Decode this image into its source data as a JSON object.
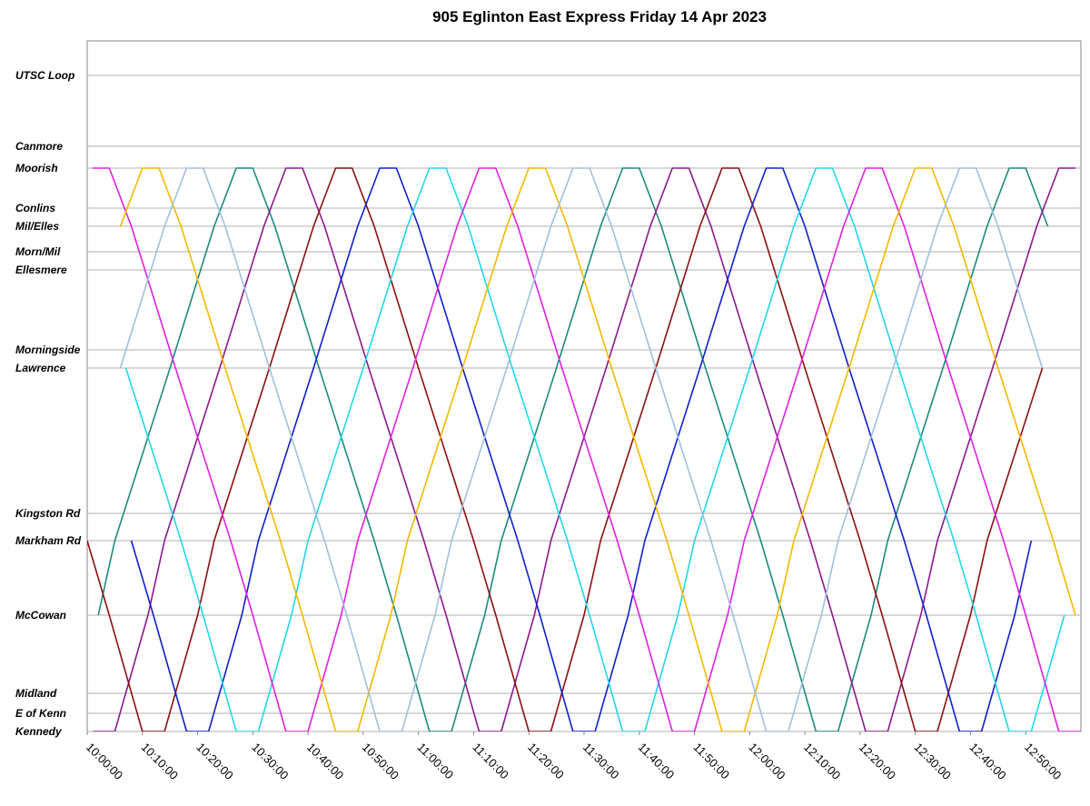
{
  "chart_data": {
    "type": "line",
    "title": "905 Eglinton East Express Friday 14 Apr 2023",
    "xlim": [
      "10:00:00",
      "13:00:00"
    ],
    "xticks": [
      "10:00:00",
      "10:10:00",
      "10:20:00",
      "10:30:00",
      "10:40:00",
      "10:50:00",
      "11:00:00",
      "11:10:00",
      "11:20:00",
      "11:30:00",
      "11:40:00",
      "11:50:00",
      "12:00:00",
      "12:10:00",
      "12:20:00",
      "12:30:00",
      "12:40:00",
      "12:50:00"
    ],
    "ylim": [
      0,
      19
    ],
    "yticks": [
      {
        "value": 18.05,
        "label": "UTSC Loop"
      },
      {
        "value": 16.1,
        "label": "Canmore"
      },
      {
        "value": 15.5,
        "label": "Moorish"
      },
      {
        "value": 14.4,
        "label": "Conlins"
      },
      {
        "value": 13.9,
        "label": "Mil/Elles"
      },
      {
        "value": 13.2,
        "label": "Morn/Mil"
      },
      {
        "value": 12.7,
        "label": "Ellesmere"
      },
      {
        "value": 10.5,
        "label": "Morningside"
      },
      {
        "value": 10,
        "label": "Lawrence"
      },
      {
        "value": 6,
        "label": "Kingston Rd"
      },
      {
        "value": 5.25,
        "label": "Markham Rd"
      },
      {
        "value": 3.2,
        "label": "McCowan"
      },
      {
        "value": 1.05,
        "label": "Midland"
      },
      {
        "value": 0.5,
        "label": "E of Kenn"
      },
      {
        "value": 0,
        "label": "Kennedy"
      }
    ],
    "grid": true,
    "series": [
      {
        "color": "#1a8a80",
        "x": [
          "10:02:00",
          "10:05:00",
          "10:15:00",
          "10:23:00",
          "10:27:00",
          "10:30:00",
          "10:34:00",
          "10:42:00",
          "10:52:00",
          "10:56:00",
          "11:02:00",
          "11:06:00",
          "11:12:00",
          "11:15:00",
          "11:25:00",
          "11:33:00",
          "11:37:00",
          "11:40:00",
          "11:44:00",
          "11:52:00",
          "12:02:00",
          "12:06:00",
          "12:12:00",
          "12:16:00",
          "12:22:00",
          "12:25:00",
          "12:35:00",
          "12:43:00",
          "12:47:00",
          "12:50:00",
          "12:54:00"
        ],
        "values": [
          3.2,
          5.25,
          10,
          13.9,
          15.5,
          15.5,
          13.9,
          10,
          5.25,
          3.2,
          0,
          0,
          3.2,
          5.25,
          10,
          13.9,
          15.5,
          15.5,
          13.9,
          10,
          5.25,
          3.2,
          0,
          0,
          3.2,
          5.25,
          10,
          13.9,
          15.5,
          15.5,
          13.9
        ]
      },
      {
        "color": "#8b1a8b",
        "x": [
          "10:01:00",
          "10:05:00",
          "10:11:00",
          "10:14:00",
          "10:24:00",
          "10:32:00",
          "10:36:00",
          "10:39:00",
          "10:43:00",
          "10:51:00",
          "11:01:00",
          "11:05:00",
          "11:11:00",
          "11:15:00",
          "11:21:00",
          "11:24:00",
          "11:34:00",
          "11:42:00",
          "11:46:00",
          "11:49:00",
          "11:53:00",
          "12:01:00",
          "12:11:00",
          "12:15:00",
          "12:21:00",
          "12:25:00",
          "12:31:00",
          "12:34:00",
          "12:44:00",
          "12:52:00",
          "12:56:00",
          "12:59:00"
        ],
        "values": [
          0,
          0,
          3.2,
          5.25,
          10,
          13.9,
          15.5,
          15.5,
          13.9,
          10,
          5.25,
          3.2,
          0,
          0,
          3.2,
          5.25,
          10,
          13.9,
          15.5,
          15.5,
          13.9,
          10,
          5.25,
          3.2,
          0,
          0,
          3.2,
          5.25,
          10,
          13.9,
          15.5,
          15.5
        ]
      },
      {
        "color": "#8b1010",
        "x": [
          "10:00:00",
          "10:04:00",
          "10:10:00",
          "10:14:00",
          "10:20:00",
          "10:23:00",
          "10:33:00",
          "10:41:00",
          "10:45:00",
          "10:48:00",
          "10:52:00",
          "11:00:00",
          "11:10:00",
          "11:14:00",
          "11:20:00",
          "11:24:00",
          "11:30:00",
          "11:33:00",
          "11:43:00",
          "11:51:00",
          "11:55:00",
          "11:58:00",
          "12:02:00",
          "12:10:00",
          "12:20:00",
          "12:24:00",
          "12:30:00",
          "12:34:00",
          "12:40:00",
          "12:43:00",
          "12:53:00"
        ],
        "values": [
          5.25,
          3.2,
          0,
          0,
          3.2,
          5.25,
          10,
          13.9,
          15.5,
          15.5,
          13.9,
          10,
          5.25,
          3.2,
          0,
          0,
          3.2,
          5.25,
          10,
          13.9,
          15.5,
          15.5,
          13.9,
          10,
          5.25,
          3.2,
          0,
          0,
          3.2,
          5.25,
          10
        ]
      },
      {
        "color": "#1020cc",
        "x": [
          "10:08:00",
          "10:12:00",
          "10:18:00",
          "10:22:00",
          "10:28:00",
          "10:31:00",
          "10:41:00",
          "10:49:00",
          "10:53:00",
          "10:56:00",
          "11:00:00",
          "11:08:00",
          "11:18:00",
          "11:22:00",
          "11:28:00",
          "11:32:00",
          "11:38:00",
          "11:41:00",
          "11:51:00",
          "11:59:00",
          "12:03:00",
          "12:06:00",
          "12:10:00",
          "12:18:00",
          "12:28:00",
          "12:32:00",
          "12:38:00",
          "12:42:00",
          "12:48:00",
          "12:51:00"
        ],
        "values": [
          5.25,
          3.2,
          0,
          0,
          3.2,
          5.25,
          10,
          13.9,
          15.5,
          15.5,
          13.9,
          10,
          5.25,
          3.2,
          0,
          0,
          3.2,
          5.25,
          10,
          13.9,
          15.5,
          15.5,
          13.9,
          10,
          5.25,
          3.2,
          0,
          0,
          3.2,
          5.25
        ]
      },
      {
        "color": "#20d8e8",
        "x": [
          "10:07:00",
          "10:17:00",
          "10:21:00",
          "10:27:00",
          "10:31:00",
          "10:37:00",
          "10:40:00",
          "10:50:00",
          "10:58:00",
          "11:02:00",
          "11:05:00",
          "11:09:00",
          "11:17:00",
          "11:27:00",
          "11:31:00",
          "11:37:00",
          "11:41:00",
          "11:47:00",
          "11:50:00",
          "12:00:00",
          "12:08:00",
          "12:12:00",
          "12:15:00",
          "12:19:00",
          "12:27:00",
          "12:37:00",
          "12:41:00",
          "12:47:00",
          "12:51:00",
          "12:57:00"
        ],
        "values": [
          10,
          5.25,
          3.2,
          0,
          0,
          3.2,
          5.25,
          10,
          13.9,
          15.5,
          15.5,
          13.9,
          10,
          5.25,
          3.2,
          0,
          0,
          3.2,
          5.25,
          10,
          13.9,
          15.5,
          15.5,
          13.9,
          10,
          5.25,
          3.2,
          0,
          0,
          3.2
        ]
      },
      {
        "color": "#e020e0",
        "x": [
          "10:01:00",
          "10:04:00",
          "10:08:00",
          "10:16:00",
          "10:26:00",
          "10:30:00",
          "10:36:00",
          "10:40:00",
          "10:46:00",
          "10:49:00",
          "10:59:00",
          "11:07:00",
          "11:11:00",
          "11:14:00",
          "11:18:00",
          "11:26:00",
          "11:36:00",
          "11:40:00",
          "11:46:00",
          "11:50:00",
          "11:56:00",
          "11:59:00",
          "12:09:00",
          "12:17:00",
          "12:21:00",
          "12:24:00",
          "12:28:00",
          "12:36:00",
          "12:46:00",
          "12:50:00",
          "12:56:00",
          "13:00:00"
        ],
        "values": [
          15.5,
          15.5,
          13.9,
          10,
          5.25,
          3.2,
          0,
          0,
          3.2,
          5.25,
          10,
          13.9,
          15.5,
          15.5,
          13.9,
          10,
          5.25,
          3.2,
          0,
          0,
          3.2,
          5.25,
          10,
          13.9,
          15.5,
          15.5,
          13.9,
          10,
          5.25,
          3.2,
          0,
          0
        ]
      },
      {
        "color": "#f5b800",
        "x": [
          "10:06:00",
          "10:10:00",
          "10:13:00",
          "10:17:00",
          "10:25:00",
          "10:35:00",
          "10:39:00",
          "10:45:00",
          "10:49:00",
          "10:55:00",
          "10:58:00",
          "11:08:00",
          "11:16:00",
          "11:20:00",
          "11:23:00",
          "11:27:00",
          "11:35:00",
          "11:45:00",
          "11:49:00",
          "11:55:00",
          "11:59:00",
          "12:05:00",
          "12:08:00",
          "12:18:00",
          "12:26:00",
          "12:30:00",
          "12:33:00",
          "12:37:00",
          "12:45:00",
          "12:55:00",
          "12:59:00"
        ],
        "values": [
          13.9,
          15.5,
          15.5,
          13.9,
          10,
          5.25,
          3.2,
          0,
          0,
          3.2,
          5.25,
          10,
          13.9,
          15.5,
          15.5,
          13.9,
          10,
          5.25,
          3.2,
          0,
          0,
          3.2,
          5.25,
          10,
          13.9,
          15.5,
          15.5,
          13.9,
          10,
          5.25,
          3.2
        ]
      },
      {
        "color": "#a0c0dc",
        "x": [
          "10:06:00",
          "10:14:00",
          "10:18:00",
          "10:21:00",
          "10:25:00",
          "10:33:00",
          "10:43:00",
          "10:47:00",
          "10:53:00",
          "10:57:00",
          "11:03:00",
          "11:06:00",
          "11:16:00",
          "11:24:00",
          "11:28:00",
          "11:31:00",
          "11:35:00",
          "11:43:00",
          "11:53:00",
          "11:57:00",
          "12:03:00",
          "12:07:00",
          "12:13:00",
          "12:16:00",
          "12:26:00",
          "12:34:00",
          "12:38:00",
          "12:41:00",
          "12:45:00",
          "12:53:00"
        ],
        "values": [
          10,
          13.9,
          15.5,
          15.5,
          13.9,
          10,
          5.25,
          3.2,
          0,
          0,
          3.2,
          5.25,
          10,
          13.9,
          15.5,
          15.5,
          13.9,
          10,
          5.25,
          3.2,
          0,
          0,
          3.2,
          5.25,
          10,
          13.9,
          15.5,
          15.5,
          13.9,
          10
        ]
      }
    ]
  }
}
